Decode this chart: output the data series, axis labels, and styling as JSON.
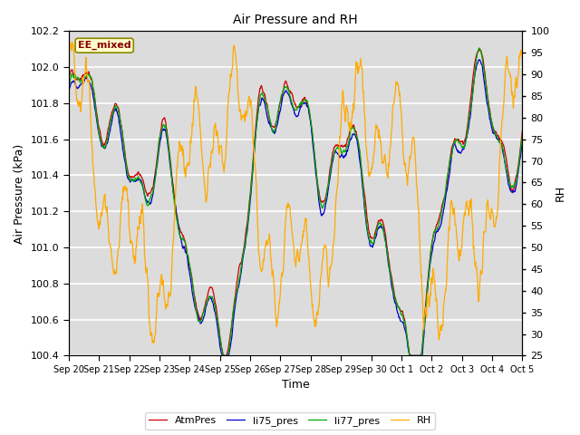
{
  "title": "Air Pressure and RH",
  "xlabel": "Time",
  "ylabel_left": "Air Pressure (kPa)",
  "ylabel_right": "RH",
  "annotation": "EE_mixed",
  "ylim_left": [
    100.4,
    102.2
  ],
  "ylim_right": [
    25,
    100
  ],
  "yticks_left": [
    100.4,
    100.6,
    100.8,
    101.0,
    101.2,
    101.4,
    101.6,
    101.8,
    102.0,
    102.2
  ],
  "yticks_right": [
    25,
    30,
    35,
    40,
    45,
    50,
    55,
    60,
    65,
    70,
    75,
    80,
    85,
    90,
    95,
    100
  ],
  "colors": {
    "AtmPres": "#cc0000",
    "li75_pres": "#0000cc",
    "li77_pres": "#00aa00",
    "RH": "#ffaa00",
    "background": "#dcdcdc",
    "annotation_bg": "#ffffcc",
    "annotation_border": "#aaaa00",
    "annotation_text": "#880000"
  },
  "xticklabels": [
    "Sep 20",
    "Sep 21",
    "Sep 22",
    "Sep 23",
    "Sep 24",
    "Sep 25",
    "Sep 26",
    "Sep 27",
    "Sep 28",
    "Sep 29",
    "Sep 30",
    "Oct 1",
    "Oct 2",
    "Oct 3",
    "Oct 4",
    "Oct 5"
  ],
  "n_points": 1000,
  "seed": 42
}
